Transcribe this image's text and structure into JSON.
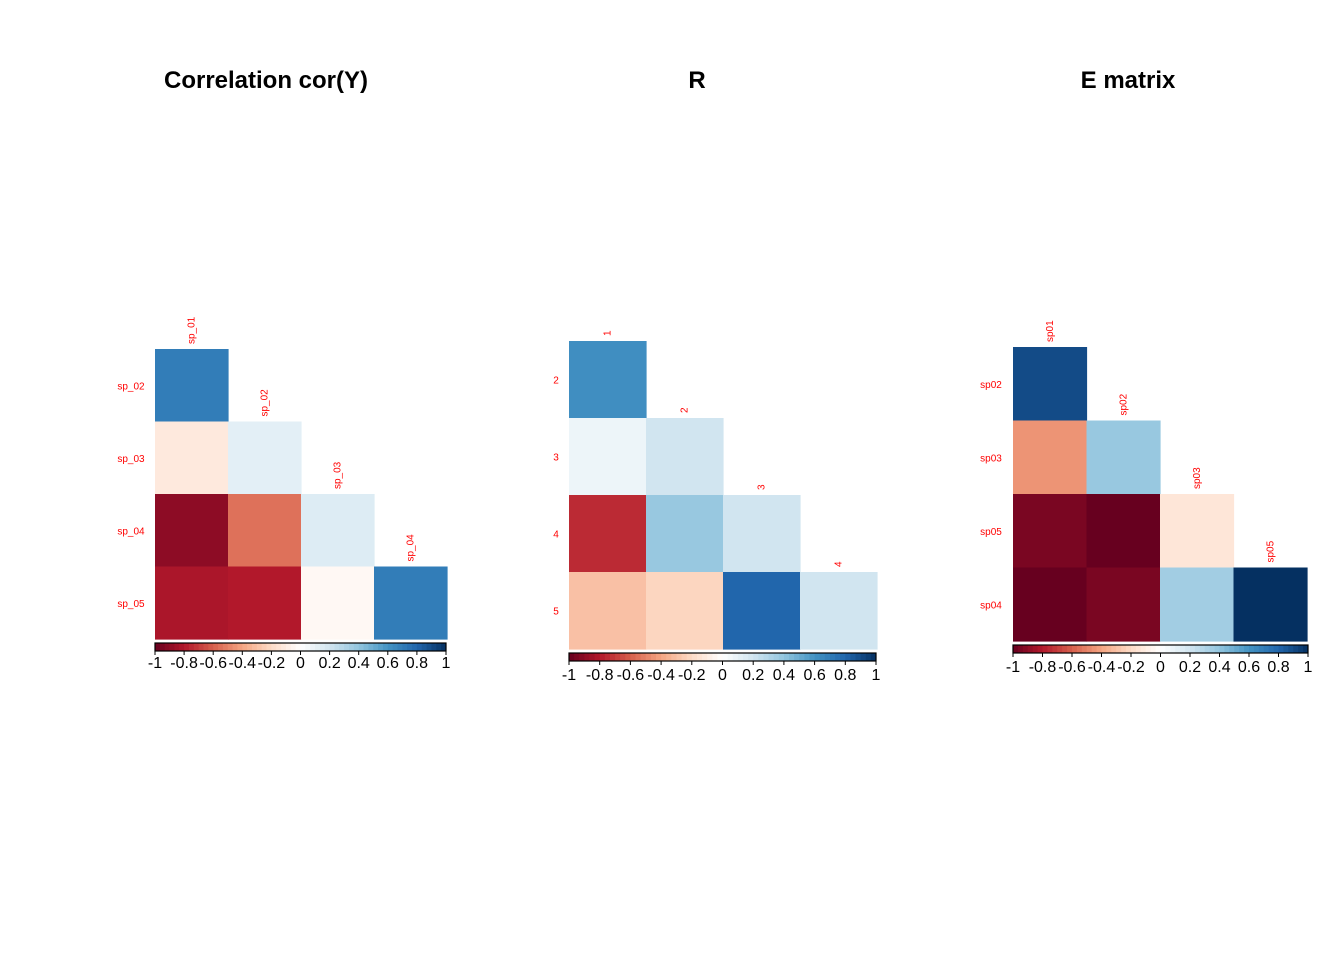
{
  "chart_data": [
    {
      "type": "heatmap",
      "title": "Correlation cor(Y)",
      "row_labels": [
        "sp_02",
        "sp_03",
        "sp_04",
        "sp_05"
      ],
      "col_labels": [
        "sp_01",
        "sp_02",
        "sp_03",
        "sp_04"
      ],
      "lower_triangle": [
        [
          0.7
        ],
        [
          -0.12,
          0.12
        ],
        [
          -0.9,
          -0.55,
          0.15
        ],
        [
          -0.82,
          -0.8,
          -0.04,
          0.7
        ]
      ],
      "scale_ticks": [
        "-1",
        "-0.8",
        "-0.6",
        "-0.4",
        "-0.2",
        "0",
        "0.2",
        "0.4",
        "0.6",
        "0.8",
        "1"
      ],
      "scale_range": [
        -1,
        1
      ]
    },
    {
      "type": "heatmap",
      "title": "R",
      "row_labels": [
        "2",
        "3",
        "4",
        "5"
      ],
      "col_labels": [
        "1",
        "2",
        "3",
        "4"
      ],
      "lower_triangle": [
        [
          0.62
        ],
        [
          0.08,
          0.2
        ],
        [
          -0.75,
          0.38,
          0.2
        ],
        [
          -0.3,
          -0.22,
          0.8,
          0.2
        ]
      ],
      "scale_ticks": [
        "-1",
        "-0.8",
        "-0.6",
        "-0.4",
        "-0.2",
        "0",
        "0.2",
        "0.4",
        "0.6",
        "0.8",
        "1"
      ],
      "scale_range": [
        -1,
        1
      ]
    },
    {
      "type": "heatmap",
      "title": "E matrix",
      "row_labels": [
        "sp02",
        "sp03",
        "sp05",
        "sp04"
      ],
      "col_labels": [
        "sp01",
        "sp02",
        "sp03",
        "sp05"
      ],
      "lower_triangle": [
        [
          0.9
        ],
        [
          -0.45,
          0.38
        ],
        [
          -0.95,
          -1.0,
          -0.14
        ],
        [
          -1.0,
          -0.95,
          0.35,
          1.0
        ]
      ],
      "scale_ticks": [
        "-1",
        "-0.8",
        "-0.6",
        "-0.4",
        "-0.2",
        "0",
        "0.2",
        "0.4",
        "0.6",
        "0.8",
        "1"
      ],
      "scale_range": [
        -1,
        1
      ]
    }
  ],
  "colors": {
    "diverging_palette": [
      "#67001f",
      "#b2182b",
      "#d6604d",
      "#f4a582",
      "#fddbc7",
      "#ffffff",
      "#d1e5f0",
      "#92c5de",
      "#4393c3",
      "#2166ac",
      "#053061"
    ],
    "label_color": "#ff0000",
    "title_color": "#000000"
  }
}
